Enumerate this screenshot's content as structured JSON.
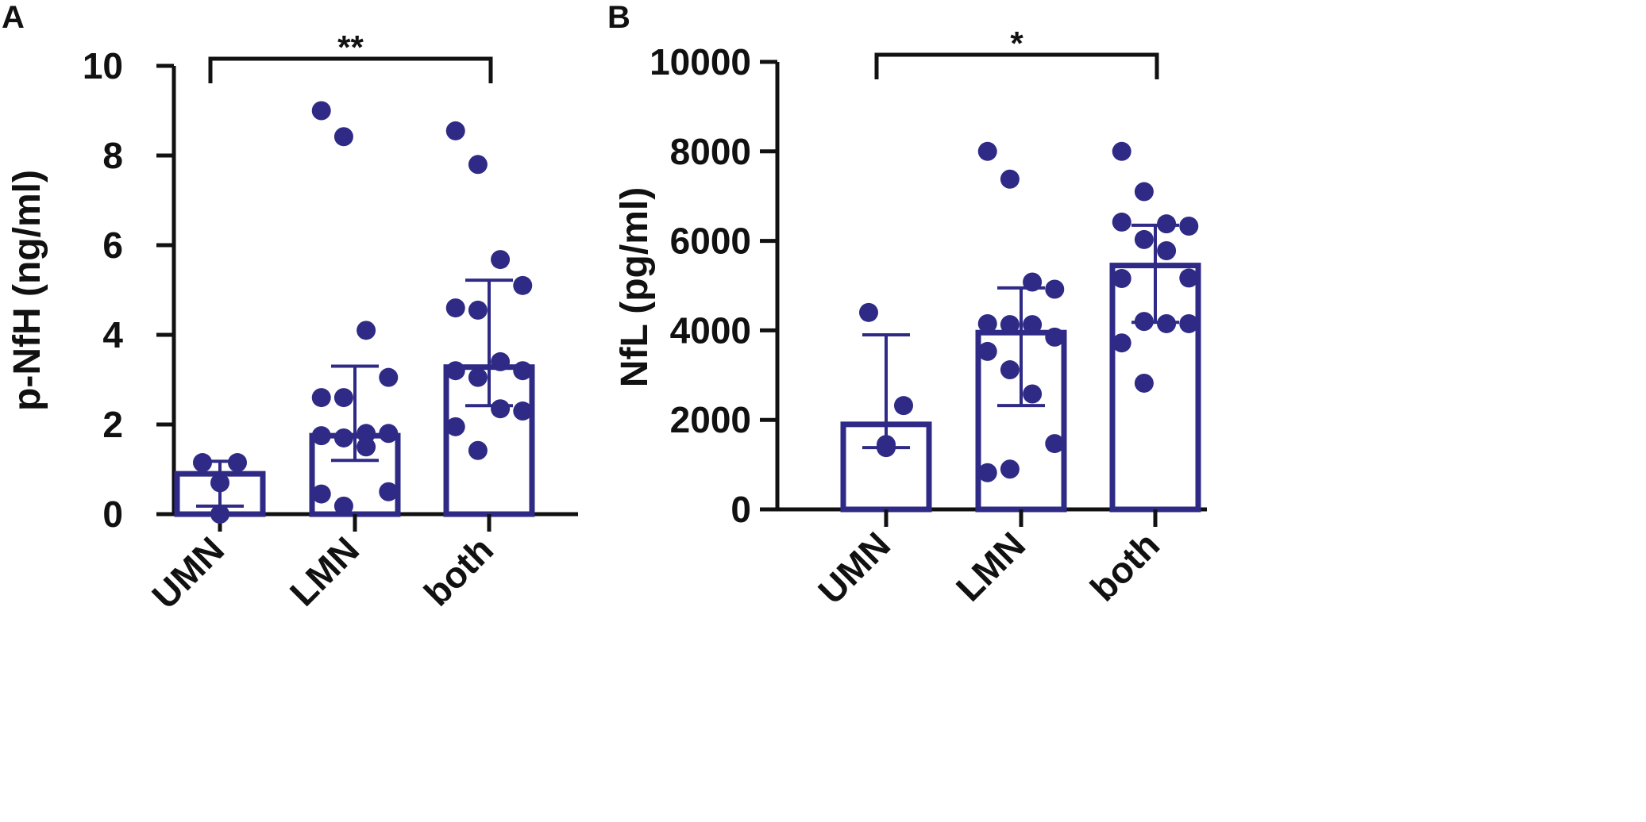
{
  "colors": {
    "series": "#2e2a86",
    "axis": "#111111"
  },
  "chart_data": [
    {
      "type": "bar",
      "panel": "A",
      "title": "",
      "xlabel": "",
      "ylabel": "p-NfH (ng/ml)",
      "ylim": [
        0,
        10
      ],
      "yticks": [
        0,
        2,
        4,
        6,
        8,
        10
      ],
      "categories": [
        "UMN",
        "LMN",
        "both"
      ],
      "values": [
        0.9,
        1.75,
        3.28
      ],
      "error_low": [
        0.18,
        1.2,
        2.42
      ],
      "error_high": [
        1.18,
        3.3,
        5.22
      ],
      "points": [
        [
          1.15,
          1.15,
          0.7,
          0.0
        ],
        [
          9.0,
          8.42,
          4.1,
          3.05,
          2.6,
          2.6,
          1.8,
          1.8,
          1.75,
          1.7,
          1.5,
          0.5,
          0.45,
          0.18
        ],
        [
          8.55,
          7.8,
          5.68,
          5.1,
          4.6,
          4.55,
          3.4,
          3.2,
          3.2,
          3.05,
          2.35,
          2.3,
          1.95,
          1.42
        ]
      ],
      "significance": {
        "from": "UMN",
        "to": "both",
        "label": "**"
      }
    },
    {
      "type": "bar",
      "panel": "B",
      "title": "",
      "xlabel": "",
      "ylabel": "NfL (pg/ml)",
      "ylim": [
        0,
        10000
      ],
      "yticks": [
        0,
        2000,
        4000,
        6000,
        8000,
        10000
      ],
      "categories": [
        "UMN",
        "LMN",
        "both"
      ],
      "values": [
        1900,
        3950,
        5450
      ],
      "error_low": [
        1380,
        2320,
        4180
      ],
      "error_high": [
        3900,
        4950,
        6350
      ],
      "points": [
        [
          4400,
          2320,
          1380,
          1450
        ],
        [
          8000,
          7380,
          5080,
          4920,
          4150,
          4130,
          4130,
          3850,
          3530,
          3120,
          2580,
          1470,
          820,
          900
        ],
        [
          8000,
          7100,
          6380,
          6330,
          6420,
          6030,
          5780,
          5170,
          5160,
          4200,
          4150,
          4150,
          3720,
          2820
        ]
      ],
      "significance": {
        "from": "UMN",
        "to": "both",
        "label": "*"
      }
    }
  ]
}
